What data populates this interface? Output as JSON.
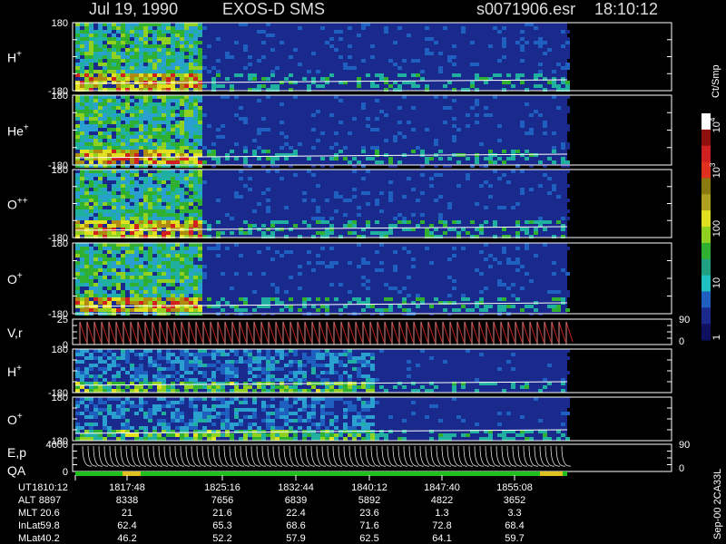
{
  "header": {
    "date": "Jul 19, 1990",
    "instrument": "EXOS-D SMS",
    "file": "s0071906.esr",
    "time": "18:10:12"
  },
  "panels": [
    {
      "label": "H",
      "sup": "+",
      "top": "180",
      "bottom": "-180"
    },
    {
      "label": "He",
      "sup": "+",
      "top": "180",
      "bottom": "-180"
    },
    {
      "label": "O",
      "sup": "++",
      "top": "180",
      "bottom": "-180"
    },
    {
      "label": "O",
      "sup": "+",
      "top": "180",
      "bottom": "-180"
    },
    {
      "label": "V,r",
      "top": "25",
      "bottom": "0",
      "right_top": "90",
      "right_bottom": "0"
    },
    {
      "label": "H",
      "sup": "+",
      "top": "180",
      "bottom": "-180"
    },
    {
      "label": "O",
      "sup": "+",
      "top": "180",
      "bottom": "-180"
    },
    {
      "label": "E,p",
      "label2": "QA",
      "top": "4000",
      "bottom": "0",
      "right_top": "90",
      "right_bottom": "0"
    }
  ],
  "colorbar": {
    "title": "Ct/Smp",
    "ticks": [
      {
        "base": "10",
        "exp": "4"
      },
      {
        "base": "10",
        "exp": "3"
      },
      {
        "base": "100"
      },
      {
        "base": "10"
      },
      {
        "base": "1"
      }
    ]
  },
  "table": {
    "rows": [
      {
        "label": "UT",
        "values": [
          "1810:12",
          "1817:48",
          "1825:16",
          "1832:44",
          "1840:12",
          "1847:40",
          "1855:08"
        ]
      },
      {
        "label": "ALT",
        "values": [
          8897,
          8338,
          7656,
          6839,
          5892,
          4822,
          3652
        ]
      },
      {
        "label": "MLT",
        "values": [
          20.6,
          21.0,
          21.6,
          22.4,
          23.6,
          1.3,
          3.3
        ]
      },
      {
        "label": "InLat",
        "values": [
          59.8,
          62.4,
          65.3,
          68.6,
          71.6,
          72.8,
          68.4
        ]
      },
      {
        "label": "MLat",
        "values": [
          40.2,
          46.2,
          52.2,
          57.9,
          62.5,
          64.1,
          59.7
        ]
      }
    ]
  },
  "footer": "Sep-00 2CA33L"
}
